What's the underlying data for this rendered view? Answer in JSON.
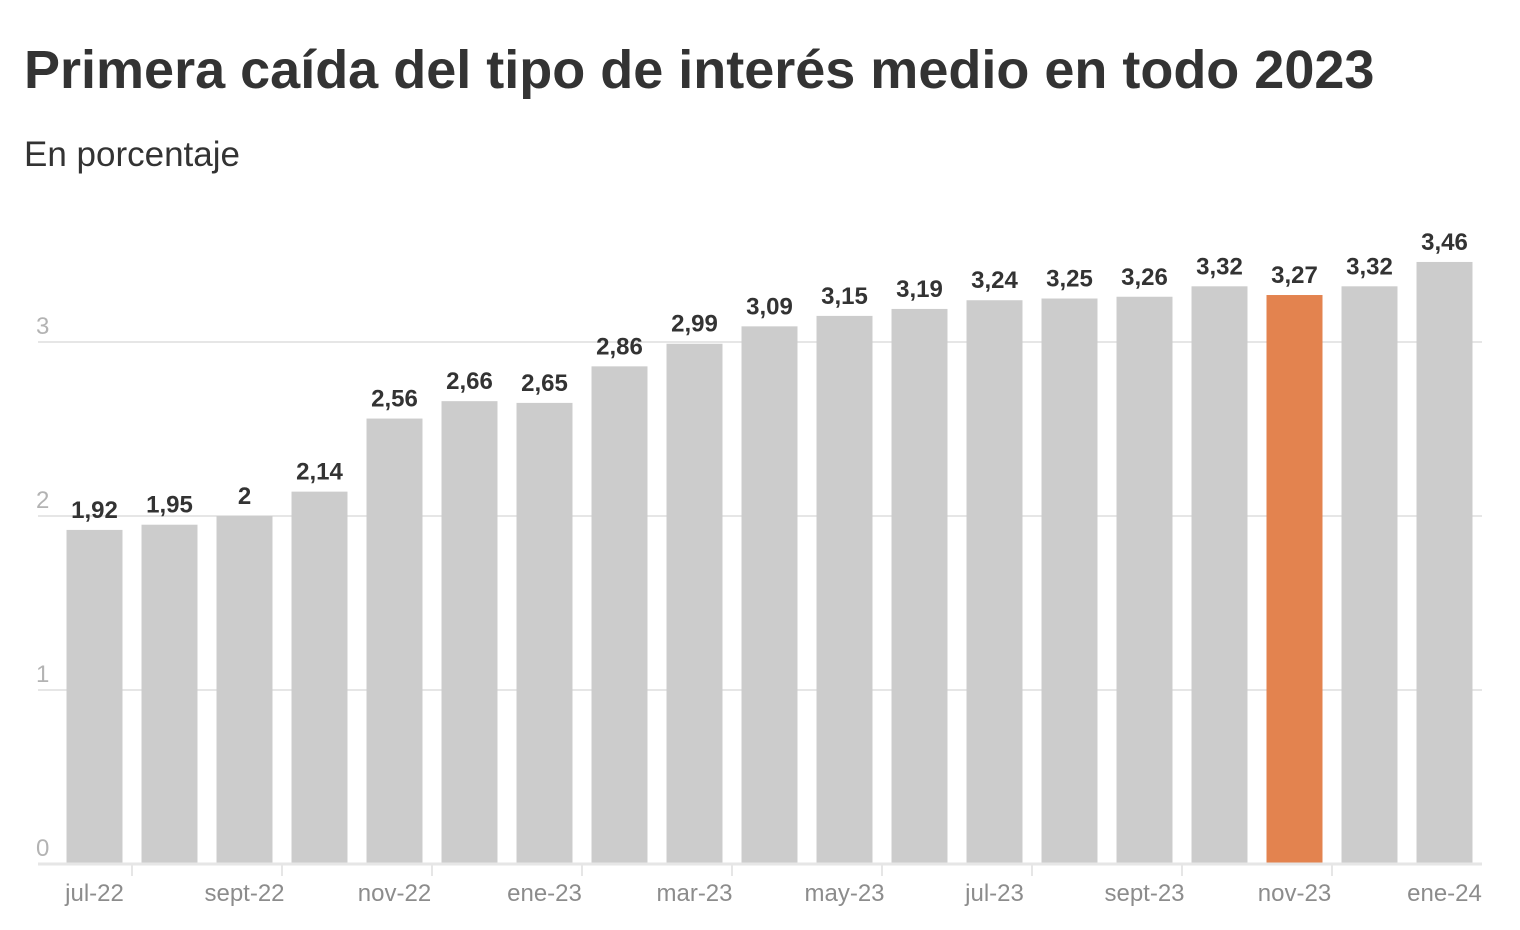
{
  "title": "Primera caída del tipo de interés medio en todo 2023",
  "subtitle": "En porcentaje",
  "colors": {
    "bar": "#cccccc",
    "highlight": "#e3834f",
    "grid": "#e6e6e6",
    "axis": "#e6e6e6",
    "text": "#333333"
  },
  "chart_data": {
    "type": "bar",
    "title": "Primera caída del tipo de interés medio en todo 2023",
    "subtitle": "En porcentaje",
    "categories": [
      "jul-22",
      "ago-22",
      "sept-22",
      "oct-22",
      "nov-22",
      "dic-22",
      "ene-23",
      "feb-23",
      "mar-23",
      "abr-23",
      "may-23",
      "jun-23",
      "jul-23",
      "ago-23",
      "sept-23",
      "oct-23",
      "nov-23",
      "dic-23",
      "ene-24"
    ],
    "values": [
      1.92,
      1.95,
      2,
      2.14,
      2.56,
      2.66,
      2.65,
      2.86,
      2.99,
      3.09,
      3.15,
      3.19,
      3.24,
      3.25,
      3.26,
      3.32,
      3.27,
      3.32,
      3.46
    ],
    "value_labels": [
      "1,92",
      "1,95",
      "2",
      "2,14",
      "2,56",
      "2,66",
      "2,65",
      "2,86",
      "2,99",
      "3,09",
      "3,15",
      "3,19",
      "3,24",
      "3,25",
      "3,26",
      "3,32",
      "3,27",
      "3,32",
      "3,46"
    ],
    "highlight_index": 16,
    "x_tick_labels": [
      {
        "index": 0,
        "label": "jul-22"
      },
      {
        "index": 2,
        "label": "sept-22"
      },
      {
        "index": 4,
        "label": "nov-22"
      },
      {
        "index": 6,
        "label": "ene-23"
      },
      {
        "index": 8,
        "label": "mar-23"
      },
      {
        "index": 10,
        "label": "may-23"
      },
      {
        "index": 12,
        "label": "jul-23"
      },
      {
        "index": 14,
        "label": "sept-23"
      },
      {
        "index": 16,
        "label": "nov-23"
      },
      {
        "index": 18,
        "label": "ene-24"
      }
    ],
    "y_ticks": [
      0,
      1,
      2,
      3
    ],
    "y_tick_labels": [
      "0",
      "1",
      "2",
      "3"
    ],
    "ylim": [
      0,
      3.5
    ],
    "xlabel": "",
    "ylabel": "",
    "grid": true,
    "legend": false
  }
}
